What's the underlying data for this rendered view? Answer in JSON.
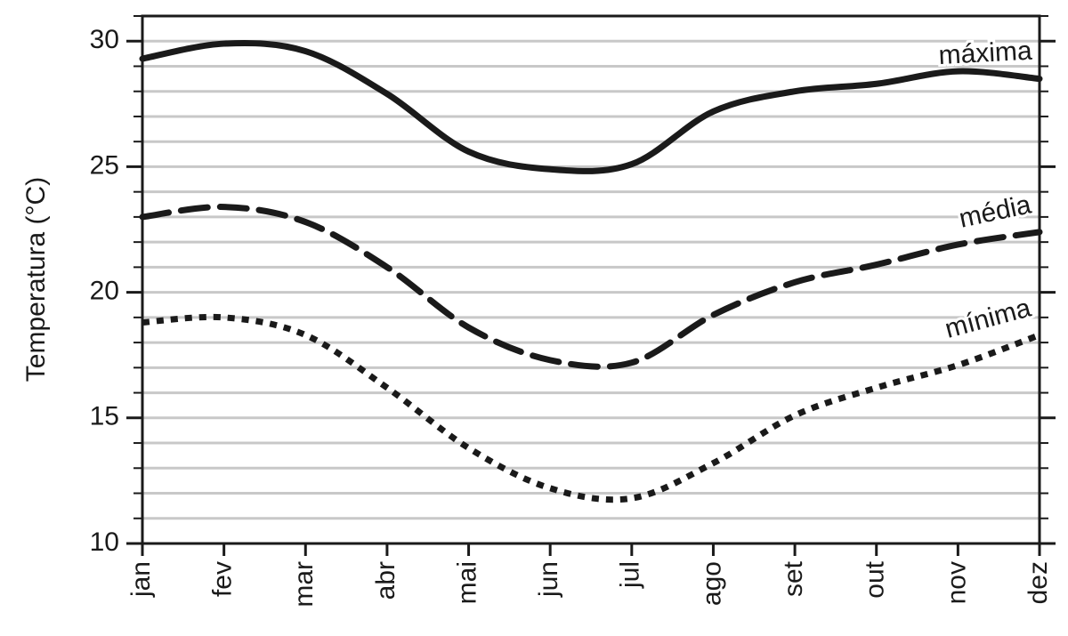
{
  "chart_data": {
    "type": "line",
    "y_label": "Temperatura (°C)",
    "categories": [
      "jan",
      "fev",
      "mar",
      "abr",
      "mai",
      "jun",
      "jul",
      "ago",
      "set",
      "out",
      "nov",
      "dez"
    ],
    "series": [
      {
        "name": "máxima",
        "color": "#1a1a1a",
        "dash": "solid",
        "values": [
          29.3,
          29.9,
          29.6,
          27.9,
          25.6,
          24.9,
          25.1,
          27.2,
          28.0,
          28.3,
          28.8,
          28.5
        ]
      },
      {
        "name": "média",
        "color": "#1a1a1a",
        "dash": "dashed",
        "values": [
          23.0,
          23.4,
          22.8,
          21.0,
          18.6,
          17.3,
          17.2,
          19.1,
          20.4,
          21.1,
          21.9,
          22.4
        ]
      },
      {
        "name": "mínima",
        "color": "#1a1a1a",
        "dash": "dotted",
        "values": [
          18.8,
          19.0,
          18.3,
          16.2,
          13.8,
          12.2,
          11.8,
          13.2,
          15.1,
          16.2,
          17.1,
          18.3
        ]
      }
    ],
    "ylim": [
      10,
      31
    ],
    "yticks": [
      10,
      15,
      20,
      25,
      30
    ],
    "minor_yticks": [
      11,
      12,
      13,
      14,
      16,
      17,
      18,
      19,
      21,
      22,
      23,
      24,
      26,
      27,
      28,
      29,
      31
    ],
    "grid": true
  }
}
